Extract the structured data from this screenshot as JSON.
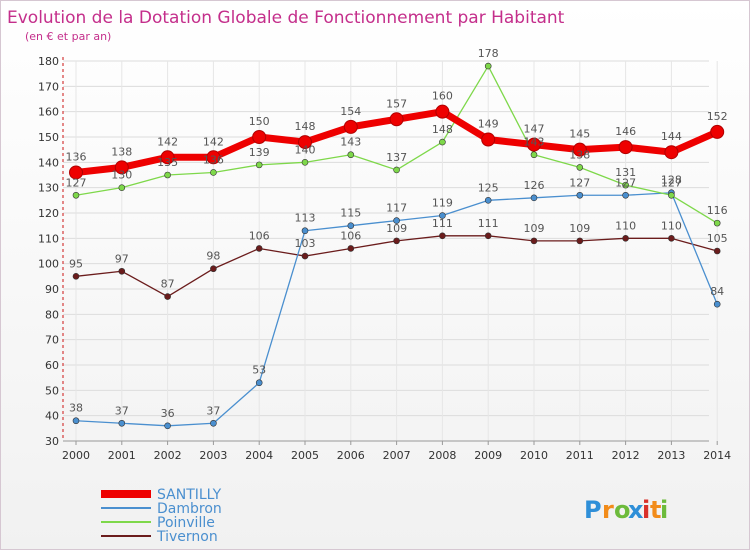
{
  "chart_data": {
    "type": "line",
    "title": "Evolution de la Dotation Globale de Fonctionnement par Habitant",
    "subtitle": "(en € et par an)",
    "xlabel": "",
    "ylabel": "",
    "ylim": [
      30,
      180
    ],
    "yticks": [
      30,
      40,
      50,
      60,
      70,
      80,
      90,
      100,
      110,
      120,
      130,
      140,
      150,
      160,
      170,
      180
    ],
    "x": [
      "2000",
      "2001",
      "2002",
      "2003",
      "2004",
      "2005",
      "2006",
      "2007",
      "2008",
      "2009",
      "2010",
      "2011",
      "2012",
      "2013",
      "2014"
    ],
    "series": [
      {
        "name": "Tivernon",
        "color": "#6b1c1c",
        "values": [
          95,
          97,
          87,
          98,
          106,
          103,
          106,
          109,
          111,
          111,
          109,
          109,
          110,
          110,
          105
        ]
      },
      {
        "name": "Dambron",
        "color": "#4a8fcf",
        "values": [
          38,
          37,
          36,
          37,
          53,
          113,
          115,
          117,
          119,
          125,
          126,
          127,
          127,
          128,
          84
        ]
      },
      {
        "name": "Poinville",
        "color": "#7ed84a",
        "values": [
          127,
          130,
          135,
          136,
          139,
          140,
          143,
          137,
          148,
          178,
          143,
          138,
          131,
          127,
          116
        ]
      },
      {
        "name": "SANTILLY",
        "color": "#ee0000",
        "values": [
          136,
          138,
          142,
          142,
          150,
          148,
          154,
          157,
          160,
          149,
          147,
          145,
          146,
          144,
          152
        ]
      }
    ],
    "legend": [
      "SANTILLY",
      "Dambron",
      "Poinville",
      "Tivernon"
    ],
    "legend_placement": "bottom-left"
  },
  "brand": {
    "letters": [
      "P",
      "r",
      "o",
      "x",
      "i",
      "t",
      "i"
    ],
    "colors": [
      "#2f8fd8",
      "#f28c1a",
      "#6dbb3c",
      "#2f8fd8",
      "#d9312b",
      "#f28c1a",
      "#6dbb3c"
    ]
  }
}
